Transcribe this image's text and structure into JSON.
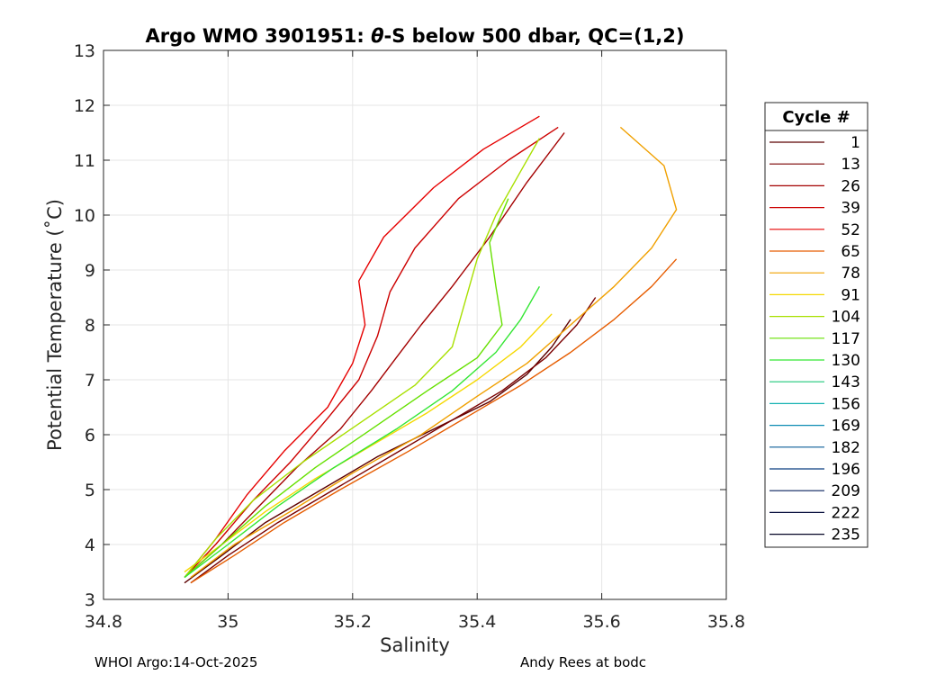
{
  "chart_data": {
    "type": "line",
    "title_prefix": "Argo WMO 3901951: ",
    "title_theta": "θ",
    "title_suffix": "-S below 500 dbar,  QC=(1,2)",
    "xlabel": "Salinity",
    "ylabel": "Potential Temperature (˚C)",
    "xlim": [
      34.8,
      35.8
    ],
    "ylim": [
      3,
      13
    ],
    "xticks": [
      "34.8",
      "35",
      "35.2",
      "35.4",
      "35.6",
      "35.8"
    ],
    "yticks": [
      "3",
      "4",
      "5",
      "6",
      "7",
      "8",
      "9",
      "10",
      "11",
      "12",
      "13"
    ],
    "grid": true,
    "legend_title": "Cycle #",
    "legend_position": "outside-right",
    "series": [
      {
        "name": "1",
        "color": "#5c0000",
        "points": [
          [
            34.93,
            3.3
          ],
          [
            34.99,
            3.8
          ],
          [
            35.06,
            4.4
          ],
          [
            35.15,
            5.0
          ],
          [
            35.24,
            5.6
          ],
          [
            35.33,
            6.1
          ],
          [
            35.42,
            6.6
          ],
          [
            35.48,
            7.1
          ],
          [
            35.52,
            7.6
          ],
          [
            35.55,
            8.1
          ]
        ]
      },
      {
        "name": "13",
        "color": "#7a0000",
        "points": [
          [
            34.94,
            3.3
          ],
          [
            35.0,
            3.8
          ],
          [
            35.08,
            4.4
          ],
          [
            35.17,
            5.0
          ],
          [
            35.26,
            5.6
          ],
          [
            35.35,
            6.2
          ],
          [
            35.44,
            6.8
          ],
          [
            35.51,
            7.4
          ],
          [
            35.56,
            8.0
          ],
          [
            35.59,
            8.5
          ]
        ]
      },
      {
        "name": "26",
        "color": "#a30000",
        "points": [
          [
            34.93,
            3.4
          ],
          [
            34.99,
            4.0
          ],
          [
            35.05,
            4.7
          ],
          [
            35.11,
            5.4
          ],
          [
            35.18,
            6.1
          ],
          [
            35.23,
            6.8
          ],
          [
            35.27,
            7.4
          ],
          [
            35.31,
            8.0
          ],
          [
            35.36,
            8.7
          ],
          [
            35.42,
            9.6
          ],
          [
            35.48,
            10.6
          ],
          [
            35.54,
            11.5
          ]
        ]
      },
      {
        "name": "39",
        "color": "#cc0000",
        "points": [
          [
            34.93,
            3.4
          ],
          [
            34.98,
            4.0
          ],
          [
            35.04,
            4.8
          ],
          [
            35.1,
            5.5
          ],
          [
            35.16,
            6.3
          ],
          [
            35.21,
            7.0
          ],
          [
            35.24,
            7.8
          ],
          [
            35.26,
            8.6
          ],
          [
            35.3,
            9.4
          ],
          [
            35.37,
            10.3
          ],
          [
            35.45,
            11.0
          ],
          [
            35.53,
            11.6
          ]
        ]
      },
      {
        "name": "52",
        "color": "#e60000",
        "points": [
          [
            34.93,
            3.4
          ],
          [
            34.98,
            4.1
          ],
          [
            35.03,
            4.9
          ],
          [
            35.09,
            5.7
          ],
          [
            35.16,
            6.5
          ],
          [
            35.2,
            7.3
          ],
          [
            35.22,
            8.0
          ],
          [
            35.21,
            8.8
          ],
          [
            35.25,
            9.6
          ],
          [
            35.33,
            10.5
          ],
          [
            35.41,
            11.2
          ],
          [
            35.5,
            11.8
          ]
        ]
      },
      {
        "name": "65",
        "color": "#e65c00",
        "points": [
          [
            34.94,
            3.3
          ],
          [
            35.01,
            3.8
          ],
          [
            35.09,
            4.4
          ],
          [
            35.18,
            5.0
          ],
          [
            35.29,
            5.7
          ],
          [
            35.38,
            6.3
          ],
          [
            35.47,
            6.9
          ],
          [
            35.55,
            7.5
          ],
          [
            35.62,
            8.1
          ],
          [
            35.68,
            8.7
          ],
          [
            35.72,
            9.2
          ]
        ]
      },
      {
        "name": "78",
        "color": "#f0a000",
        "points": [
          [
            34.94,
            3.4
          ],
          [
            35.01,
            4.0
          ],
          [
            35.1,
            4.6
          ],
          [
            35.2,
            5.3
          ],
          [
            35.31,
            6.0
          ],
          [
            35.4,
            6.7
          ],
          [
            35.48,
            7.3
          ],
          [
            35.55,
            8.0
          ],
          [
            35.62,
            8.7
          ],
          [
            35.68,
            9.4
          ],
          [
            35.72,
            10.1
          ],
          [
            35.7,
            10.9
          ],
          [
            35.63,
            11.6
          ]
        ]
      },
      {
        "name": "91",
        "color": "#f5d800",
        "points": [
          [
            34.93,
            3.5
          ],
          [
            34.99,
            4.0
          ],
          [
            35.06,
            4.6
          ],
          [
            35.14,
            5.2
          ],
          [
            35.23,
            5.8
          ],
          [
            35.32,
            6.4
          ],
          [
            35.4,
            7.0
          ],
          [
            35.47,
            7.6
          ],
          [
            35.52,
            8.2
          ]
        ]
      },
      {
        "name": "104",
        "color": "#a8e000",
        "points": [
          [
            34.93,
            3.4
          ],
          [
            34.98,
            4.1
          ],
          [
            35.04,
            4.8
          ],
          [
            35.12,
            5.5
          ],
          [
            35.21,
            6.2
          ],
          [
            35.3,
            6.9
          ],
          [
            35.36,
            7.6
          ],
          [
            35.38,
            8.4
          ],
          [
            35.4,
            9.2
          ],
          [
            35.43,
            10.0
          ],
          [
            35.47,
            10.8
          ],
          [
            35.5,
            11.4
          ]
        ]
      },
      {
        "name": "117",
        "color": "#66e000",
        "points": [
          [
            34.93,
            3.4
          ],
          [
            34.99,
            4.0
          ],
          [
            35.06,
            4.7
          ],
          [
            35.14,
            5.4
          ],
          [
            35.23,
            6.1
          ],
          [
            35.32,
            6.8
          ],
          [
            35.4,
            7.4
          ],
          [
            35.44,
            8.0
          ],
          [
            35.43,
            8.7
          ],
          [
            35.42,
            9.5
          ],
          [
            35.45,
            10.3
          ]
        ]
      },
      {
        "name": "130",
        "color": "#33e633",
        "points": [
          [
            34.93,
            3.4
          ],
          [
            35.0,
            4.0
          ],
          [
            35.08,
            4.7
          ],
          [
            35.17,
            5.4
          ],
          [
            35.27,
            6.1
          ],
          [
            35.36,
            6.8
          ],
          [
            35.43,
            7.5
          ],
          [
            35.47,
            8.1
          ],
          [
            35.5,
            8.7
          ]
        ]
      },
      {
        "name": "143",
        "color": "#1fc97a",
        "points": []
      },
      {
        "name": "156",
        "color": "#17b3b3",
        "points": []
      },
      {
        "name": "169",
        "color": "#0e8cb3",
        "points": []
      },
      {
        "name": "182",
        "color": "#0b5e99",
        "points": []
      },
      {
        "name": "196",
        "color": "#0a3d80",
        "points": []
      },
      {
        "name": "209",
        "color": "#09205e",
        "points": []
      },
      {
        "name": "222",
        "color": "#080f3d",
        "points": []
      },
      {
        "name": "235",
        "color": "#050526",
        "points": []
      }
    ]
  },
  "footer": {
    "left": "WHOI Argo:14-Oct-2025",
    "right": "Andy Rees at bodc"
  }
}
